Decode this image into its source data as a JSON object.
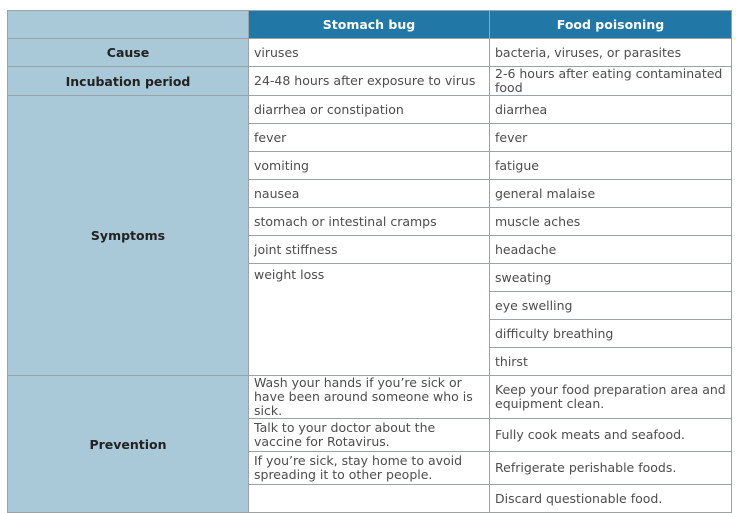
{
  "header": {
    "col1": "",
    "col2": "Stomach bug",
    "col3": "Food poisoning"
  },
  "cause": {
    "label": "Cause",
    "stomach_bug": "viruses",
    "food_poisoning": "bacteria, viruses, or parasites"
  },
  "incubation": {
    "label": "Incubation period",
    "stomach_bug": "24-48 hours after exposure to virus",
    "food_poisoning": "2-6 hours after eating contaminated food"
  },
  "symptoms": {
    "label": "Symptoms",
    "stomach_bug": [
      "diarrhea or constipation",
      "fever",
      "vomiting",
      "nausea",
      "stomach or intestinal cramps",
      "joint stiffness",
      "weight loss"
    ],
    "food_poisoning": [
      "diarrhea",
      "fever",
      "fatigue",
      "general malaise",
      "muscle aches",
      "headache",
      "sweating",
      "eye swelling",
      "difficulty breathing",
      "thirst"
    ]
  },
  "prevention": {
    "label": "Prevention",
    "stomach_bug": [
      "Wash your hands if you’re sick or have been around someone who is sick.",
      "Talk to your doctor about the vaccine for Rotavirus.",
      "If you’re sick, stay home to avoid spreading it to other people."
    ],
    "food_poisoning": [
      "Keep your food preparation area and equipment clean.",
      "Fully cook meats and seafood.",
      "Refrigerate perishable foods.",
      "Discard questionable food."
    ]
  }
}
